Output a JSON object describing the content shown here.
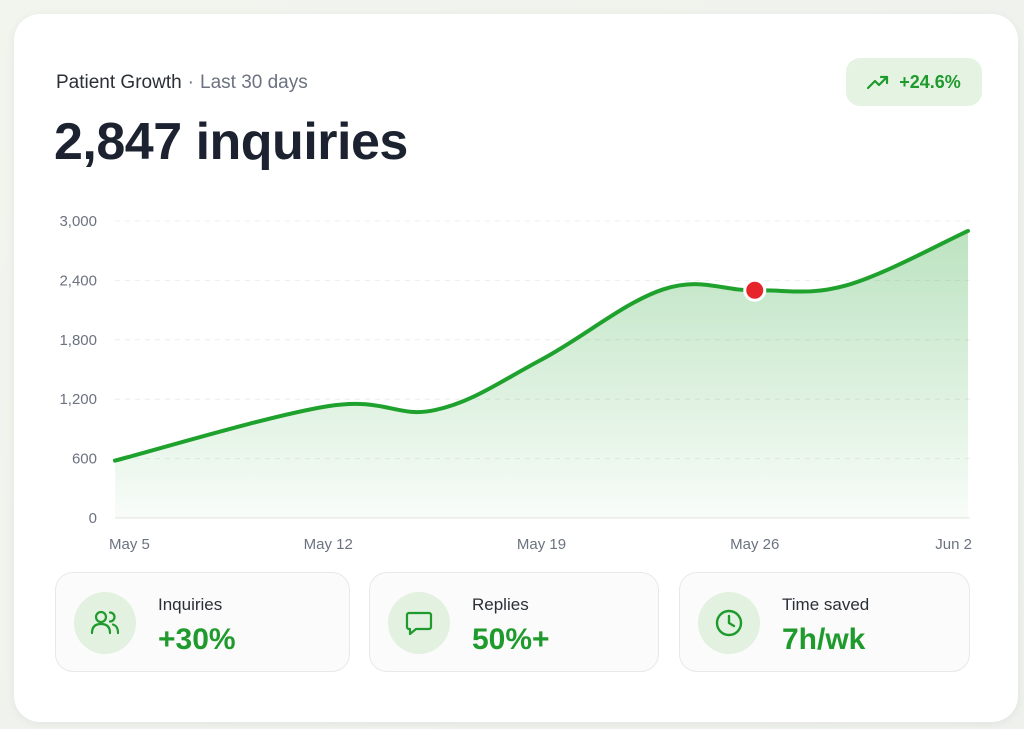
{
  "header": {
    "title": "Patient Growth",
    "separator": "·",
    "period": "Last 30 days",
    "total": "2,847 inquiries",
    "trend": "+24.6%"
  },
  "colors": {
    "accent": "#1fa12e",
    "marker": "#e8242b",
    "text": "#1c2230",
    "muted": "#6b7280"
  },
  "stats": [
    {
      "icon": "users-icon",
      "label": "Inquiries",
      "value": "+30%"
    },
    {
      "icon": "message-icon",
      "label": "Replies",
      "value": "50%+"
    },
    {
      "icon": "clock-icon",
      "label": "Time saved",
      "value": "7h/wk"
    }
  ],
  "chart_data": {
    "type": "area",
    "y_ticks": [
      "3,000",
      "2,400",
      "1,800",
      "1,200",
      "600",
      "0"
    ],
    "x_ticks": [
      "May 5",
      "May 12",
      "May 19",
      "May 26",
      "Jun 2"
    ],
    "ylim": [
      0,
      3000
    ],
    "grid": true,
    "series": [
      {
        "points": [
          {
            "x": 0,
            "y": 580
          },
          {
            "x": 7,
            "y": 1130
          },
          {
            "x": 10.5,
            "y": 1090
          },
          {
            "x": 14,
            "y": 1600
          },
          {
            "x": 18,
            "y": 2310
          },
          {
            "x": 21,
            "y": 2300
          },
          {
            "x": 24,
            "y": 2350
          },
          {
            "x": 28,
            "y": 2900
          }
        ]
      }
    ],
    "highlight": {
      "x": 21,
      "y": 2300
    }
  }
}
